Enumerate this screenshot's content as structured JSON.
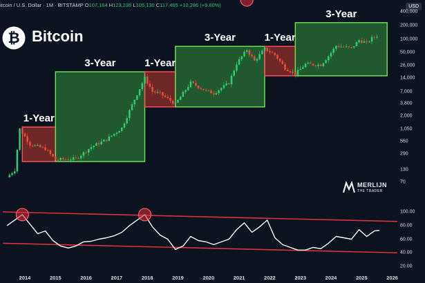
{
  "header": {
    "symbol_text": "itcoin / U.S. Dollar · 1M · BITSTAMP",
    "ohlc": [
      {
        "k": "O",
        "v": "107,164"
      },
      {
        "k": "H",
        "v": "123,236"
      },
      {
        "k": "L",
        "v": "105,130"
      },
      {
        "k": "C",
        "v": "117,465"
      }
    ],
    "change": "+10,286 (+9.60%)",
    "currency_badge": "USD"
  },
  "brand": {
    "title": "Bitcoin",
    "logo_glyph": "₿",
    "logo_color": "#ffffff"
  },
  "watermark": {
    "line1": "MERLIJN",
    "line2": "THE TRADER"
  },
  "colors": {
    "background": "#0b1220",
    "green_box": "#3cb043",
    "red_box": "#c0392b",
    "candle_up": "#2ecc71",
    "candle_down": "#e74c3c",
    "rsi_line": "#ffffff",
    "channel": "#e0303e"
  },
  "chart_data": [
    {
      "type": "candlestick",
      "title": "Bitcoin",
      "y_scale": "log",
      "currency": "USD",
      "y_ticks": [
        "400,000",
        "200,000",
        "100,000",
        "50,000",
        "26,000",
        "14,000",
        "7,000",
        "3,800",
        "2,000",
        "1,050",
        "550",
        "290",
        "130",
        "70"
      ],
      "x_ticks": [
        "2014",
        "2015",
        "2016",
        "2017",
        "2018",
        "2019",
        "2020",
        "2021",
        "2022",
        "2023",
        "2024",
        "2025",
        "2026"
      ],
      "price_path": [
        {
          "d": "2013-06",
          "p": 90
        },
        {
          "d": "2013-09",
          "p": 130
        },
        {
          "d": "2013-11",
          "p": 1050
        },
        {
          "d": "2014-03",
          "p": 480
        },
        {
          "d": "2014-09",
          "p": 380
        },
        {
          "d": "2015-01",
          "p": 220
        },
        {
          "d": "2015-09",
          "p": 230
        },
        {
          "d": "2016-03",
          "p": 420
        },
        {
          "d": "2016-09",
          "p": 610
        },
        {
          "d": "2017-03",
          "p": 1100
        },
        {
          "d": "2017-08",
          "p": 4700
        },
        {
          "d": "2017-12",
          "p": 14000
        },
        {
          "d": "2018-03",
          "p": 7000
        },
        {
          "d": "2018-06",
          "p": 6300
        },
        {
          "d": "2018-12",
          "p": 3700
        },
        {
          "d": "2019-06",
          "p": 11000
        },
        {
          "d": "2019-12",
          "p": 7200
        },
        {
          "d": "2020-03",
          "p": 6400
        },
        {
          "d": "2020-09",
          "p": 10800
        },
        {
          "d": "2020-12",
          "p": 29000
        },
        {
          "d": "2021-04",
          "p": 58000
        },
        {
          "d": "2021-07",
          "p": 33000
        },
        {
          "d": "2021-11",
          "p": 61000
        },
        {
          "d": "2022-03",
          "p": 45000
        },
        {
          "d": "2022-07",
          "p": 23000
        },
        {
          "d": "2022-11",
          "p": 17000
        },
        {
          "d": "2023-03",
          "p": 28000
        },
        {
          "d": "2023-09",
          "p": 27000
        },
        {
          "d": "2023-12",
          "p": 42000
        },
        {
          "d": "2024-03",
          "p": 71000
        },
        {
          "d": "2024-09",
          "p": 63000
        },
        {
          "d": "2024-12",
          "p": 94000
        },
        {
          "d": "2025-03",
          "p": 82000
        },
        {
          "d": "2025-05",
          "p": 104000
        },
        {
          "d": "2025-07",
          "p": 117465
        }
      ],
      "cycle_boxes": [
        {
          "label": "1-Year",
          "kind": "bear",
          "from": "2013-12",
          "to": "2015-01",
          "low": 200,
          "high": 1150
        },
        {
          "label": "3-Year",
          "kind": "bull",
          "from": "2015-01",
          "to": "2017-12",
          "low": 200,
          "high": 19000
        },
        {
          "label": "1-Year",
          "kind": "bear",
          "from": "2017-12",
          "to": "2018-12",
          "low": 3200,
          "high": 19000
        },
        {
          "label": "3-Year",
          "kind": "bull",
          "from": "2018-12",
          "to": "2021-11",
          "low": 3200,
          "high": 69000
        },
        {
          "label": "1-Year",
          "kind": "bear",
          "from": "2021-11",
          "to": "2022-11",
          "low": 15500,
          "high": 69000
        },
        {
          "label": "3-Year",
          "kind": "bull",
          "from": "2022-11",
          "to": "2025-11",
          "low": 15500,
          "high": 230000
        }
      ]
    },
    {
      "type": "line",
      "indicator": "oscillator",
      "y_ticks": [
        "100.00",
        "80.00",
        "60.00",
        "40.00",
        "20.00"
      ],
      "x": [
        "2013-06",
        "2013-09",
        "2013-12",
        "2014-03",
        "2014-06",
        "2014-09",
        "2014-12",
        "2015-03",
        "2015-06",
        "2015-09",
        "2015-12",
        "2016-03",
        "2016-06",
        "2016-09",
        "2016-12",
        "2017-03",
        "2017-06",
        "2017-09",
        "2017-12",
        "2018-03",
        "2018-06",
        "2018-09",
        "2018-12",
        "2019-03",
        "2019-06",
        "2019-09",
        "2019-12",
        "2020-03",
        "2020-06",
        "2020-09",
        "2020-12",
        "2021-03",
        "2021-06",
        "2021-09",
        "2021-12",
        "2022-03",
        "2022-06",
        "2022-09",
        "2022-12",
        "2023-03",
        "2023-06",
        "2023-09",
        "2023-12",
        "2024-03",
        "2024-06",
        "2024-09",
        "2024-12",
        "2025-03",
        "2025-06",
        "2025-08"
      ],
      "y": [
        80,
        88,
        96,
        82,
        68,
        72,
        58,
        50,
        47,
        50,
        56,
        57,
        60,
        62,
        65,
        70,
        80,
        88,
        96,
        78,
        66,
        60,
        45,
        50,
        64,
        58,
        56,
        52,
        56,
        60,
        74,
        84,
        70,
        78,
        88,
        62,
        52,
        48,
        44,
        44,
        48,
        46,
        54,
        64,
        62,
        60,
        74,
        64,
        72,
        73
      ],
      "peaks_circled": [
        "2013-12",
        "2017-12",
        "2021-04"
      ],
      "channel": {
        "upper": [
          100,
          86
        ],
        "lower": [
          54,
          40
        ]
      }
    }
  ]
}
